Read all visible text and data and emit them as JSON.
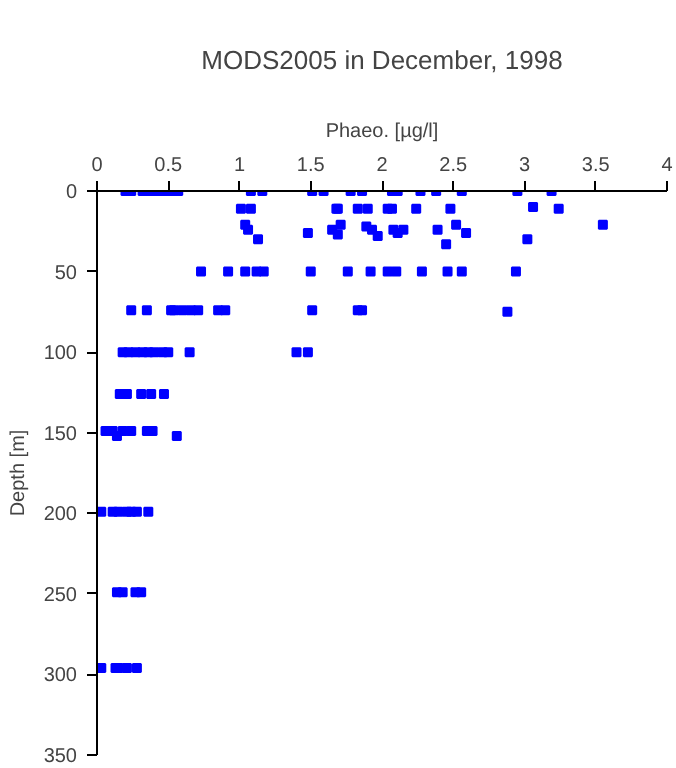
{
  "chart_data": {
    "type": "scatter",
    "title": "MODS2005 in December, 1998",
    "xlabel": "Phaeo. [µg/l]",
    "ylabel": "Depth [m]",
    "xlim": [
      0,
      4
    ],
    "xticks": [
      0,
      0.5,
      1,
      1.5,
      2,
      2.5,
      3,
      3.5,
      4
    ],
    "ylim": [
      350,
      0
    ],
    "yticks": [
      0,
      50,
      100,
      150,
      200,
      250,
      300,
      350
    ],
    "grid": false,
    "marker": "square",
    "series": [
      {
        "color": "#0000ff",
        "x": [
          0.2,
          0.24,
          0.32,
          0.36,
          0.4,
          0.44,
          0.48,
          0.52,
          0.57,
          1.08,
          1.16,
          1.51,
          1.59,
          1.78,
          1.86,
          2.07,
          2.11,
          2.27,
          2.38,
          2.56,
          2.95,
          3.19,
          1.01,
          1.08,
          1.68,
          1.69,
          1.83,
          1.9,
          2.04,
          2.07,
          2.24,
          2.48,
          3.06,
          3.24,
          1.04,
          1.06,
          1.13,
          1.48,
          1.65,
          1.69,
          1.71,
          1.89,
          1.93,
          1.97,
          2.08,
          2.11,
          2.15,
          2.39,
          2.45,
          2.52,
          2.59,
          3.02,
          3.55,
          0.73,
          0.92,
          1.04,
          1.12,
          1.17,
          1.5,
          1.76,
          1.92,
          2.04,
          2.1,
          2.28,
          2.46,
          2.56,
          2.94,
          0.24,
          0.35,
          0.52,
          0.54,
          0.6,
          0.66,
          0.71,
          0.85,
          0.9,
          1.51,
          1.83,
          1.86,
          2.88,
          0.18,
          0.22,
          0.27,
          0.32,
          0.36,
          0.4,
          0.46,
          0.5,
          0.65,
          1.4,
          1.48,
          0.16,
          0.21,
          0.31,
          0.38,
          0.47,
          0.06,
          0.11,
          0.14,
          0.18,
          0.24,
          0.35,
          0.39,
          0.56,
          0.03,
          0.11,
          0.15,
          0.21,
          0.24,
          0.28,
          0.36,
          0.14,
          0.18,
          0.27,
          0.31,
          0.03,
          0.13,
          0.15,
          0.21,
          0.28
        ],
        "values": [
          0,
          0,
          0,
          0,
          0,
          0,
          0,
          0,
          0,
          0,
          0,
          0,
          0,
          0,
          0,
          0,
          0,
          0,
          0,
          0,
          0,
          0,
          11,
          11,
          11,
          11,
          11,
          11,
          11,
          11,
          11,
          11,
          10,
          11,
          21,
          24,
          30,
          26,
          24,
          27,
          21,
          22,
          24,
          28,
          24,
          26,
          24,
          24,
          33,
          21,
          26,
          30,
          21,
          50,
          50,
          50,
          50,
          50,
          50,
          50,
          50,
          50,
          50,
          50,
          50,
          50,
          50,
          74,
          74,
          74,
          74,
          74,
          74,
          74,
          74,
          74,
          74,
          74,
          74,
          75,
          100,
          100,
          100,
          100,
          100,
          100,
          100,
          100,
          100,
          100,
          100,
          126,
          126,
          126,
          126,
          126,
          149,
          149,
          152,
          149,
          149,
          149,
          149,
          152,
          199,
          199,
          199,
          199,
          199,
          199,
          199,
          249,
          249,
          249,
          249,
          296,
          296,
          296,
          296,
          296
        ]
      }
    ]
  }
}
